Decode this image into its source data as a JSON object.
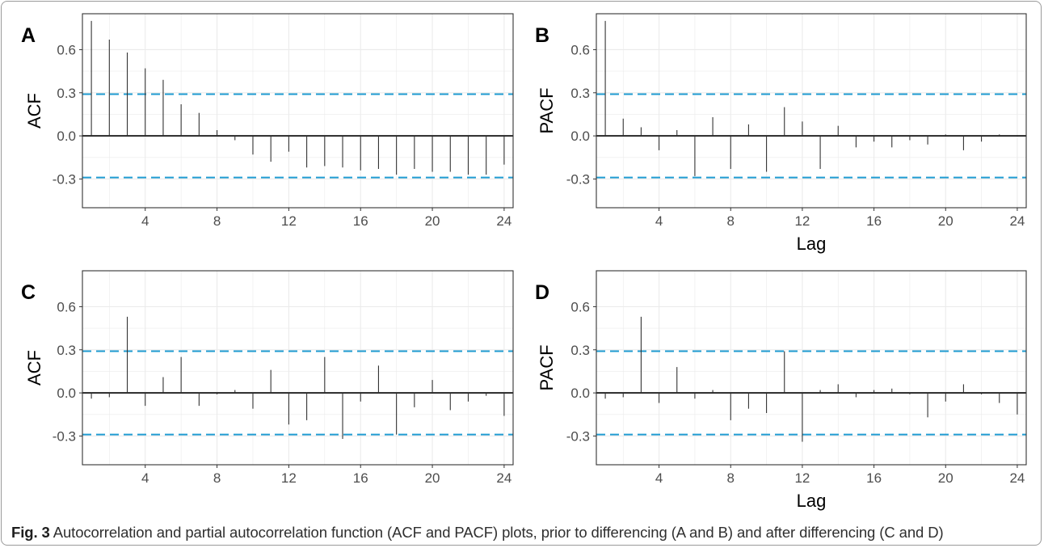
{
  "caption": {
    "label": "Fig. 3",
    "text": "Autocorrelation and partial autocorrelation function (ACF and PACF) plots, prior to differencing (A and B) and after differencing (C and D)"
  },
  "colors": {
    "confidence_band": "#1f9bd1",
    "spike": "#333333",
    "zero_line": "#000000",
    "grid": "#ebebeb"
  },
  "chart_data": [
    {
      "type": "bar",
      "panel": "A",
      "title": "",
      "xlabel": "",
      "ylabel": "ACF",
      "x": [
        1,
        2,
        3,
        4,
        5,
        6,
        7,
        8,
        9,
        10,
        11,
        12,
        13,
        14,
        15,
        16,
        17,
        18,
        19,
        20,
        21,
        22,
        23,
        24
      ],
      "values": [
        0.8,
        0.67,
        0.58,
        0.47,
        0.39,
        0.22,
        0.16,
        0.04,
        -0.03,
        -0.13,
        -0.18,
        -0.11,
        -0.22,
        -0.21,
        -0.22,
        -0.24,
        -0.23,
        -0.27,
        -0.23,
        -0.25,
        -0.25,
        -0.27,
        -0.27,
        -0.2
      ],
      "confidence_bounds": [
        0.29,
        -0.29
      ],
      "xticks": [
        4,
        8,
        12,
        16,
        20,
        24
      ],
      "yticks": [
        -0.3,
        0.0,
        0.3,
        0.6
      ],
      "ytick_labels": [
        "-0.3",
        "0.0",
        "0.3",
        "0.6"
      ],
      "xlim": [
        0.5,
        24.5
      ],
      "ylim": [
        -0.5,
        0.85
      ],
      "grid": true
    },
    {
      "type": "bar",
      "panel": "B",
      "title": "",
      "xlabel": "Lag",
      "ylabel": "PACF",
      "x": [
        1,
        2,
        3,
        4,
        5,
        6,
        7,
        8,
        9,
        10,
        11,
        12,
        13,
        14,
        15,
        16,
        17,
        18,
        19,
        20,
        21,
        22,
        23,
        24
      ],
      "values": [
        0.8,
        0.12,
        0.06,
        -0.1,
        0.04,
        -0.28,
        0.13,
        -0.23,
        0.08,
        -0.25,
        0.2,
        0.1,
        -0.23,
        0.07,
        -0.08,
        -0.04,
        -0.08,
        -0.03,
        -0.06,
        0.01,
        -0.1,
        -0.04,
        0.01,
        0.0
      ],
      "confidence_bounds": [
        0.29,
        -0.29
      ],
      "xticks": [
        4,
        8,
        12,
        16,
        20,
        24
      ],
      "yticks": [
        -0.3,
        0.0,
        0.3,
        0.6
      ],
      "ytick_labels": [
        "-0.3",
        "0.0",
        "0.3",
        "0.6"
      ],
      "xlim": [
        0.5,
        24.5
      ],
      "ylim": [
        -0.5,
        0.85
      ],
      "grid": true
    },
    {
      "type": "bar",
      "panel": "C",
      "title": "",
      "xlabel": "",
      "ylabel": "ACF",
      "x": [
        1,
        2,
        3,
        4,
        5,
        6,
        7,
        8,
        9,
        10,
        11,
        12,
        13,
        14,
        15,
        16,
        17,
        18,
        19,
        20,
        21,
        22,
        23,
        24
      ],
      "values": [
        -0.04,
        -0.03,
        0.53,
        -0.09,
        0.11,
        0.25,
        -0.09,
        -0.01,
        0.02,
        -0.11,
        0.16,
        -0.22,
        -0.19,
        0.25,
        -0.32,
        -0.06,
        0.19,
        -0.29,
        -0.1,
        0.09,
        -0.12,
        -0.06,
        -0.02,
        -0.16
      ],
      "confidence_bounds": [
        0.29,
        -0.29
      ],
      "xticks": [
        4,
        8,
        12,
        16,
        20,
        24
      ],
      "yticks": [
        -0.3,
        0.0,
        0.3,
        0.6
      ],
      "ytick_labels": [
        "-0.3",
        "0.0",
        "0.3",
        "0.6"
      ],
      "xlim": [
        0.5,
        24.5
      ],
      "ylim": [
        -0.5,
        0.85
      ],
      "grid": true
    },
    {
      "type": "bar",
      "panel": "D",
      "title": "",
      "xlabel": "Lag",
      "ylabel": "PACF",
      "x": [
        1,
        2,
        3,
        4,
        5,
        6,
        7,
        8,
        9,
        10,
        11,
        12,
        13,
        14,
        15,
        16,
        17,
        18,
        19,
        20,
        21,
        22,
        23,
        24
      ],
      "values": [
        -0.04,
        -0.03,
        0.53,
        -0.07,
        0.18,
        -0.04,
        0.02,
        -0.19,
        -0.11,
        -0.14,
        0.29,
        -0.34,
        0.02,
        0.06,
        -0.03,
        0.02,
        0.03,
        -0.01,
        -0.17,
        -0.06,
        0.06,
        -0.01,
        -0.07,
        -0.15
      ],
      "confidence_bounds": [
        0.29,
        -0.29
      ],
      "xticks": [
        4,
        8,
        12,
        16,
        20,
        24
      ],
      "yticks": [
        -0.3,
        0.0,
        0.3,
        0.6
      ],
      "ytick_labels": [
        "-0.3",
        "0.0",
        "0.3",
        "0.6"
      ],
      "xlim": [
        0.5,
        24.5
      ],
      "ylim": [
        -0.5,
        0.85
      ],
      "grid": true
    }
  ]
}
